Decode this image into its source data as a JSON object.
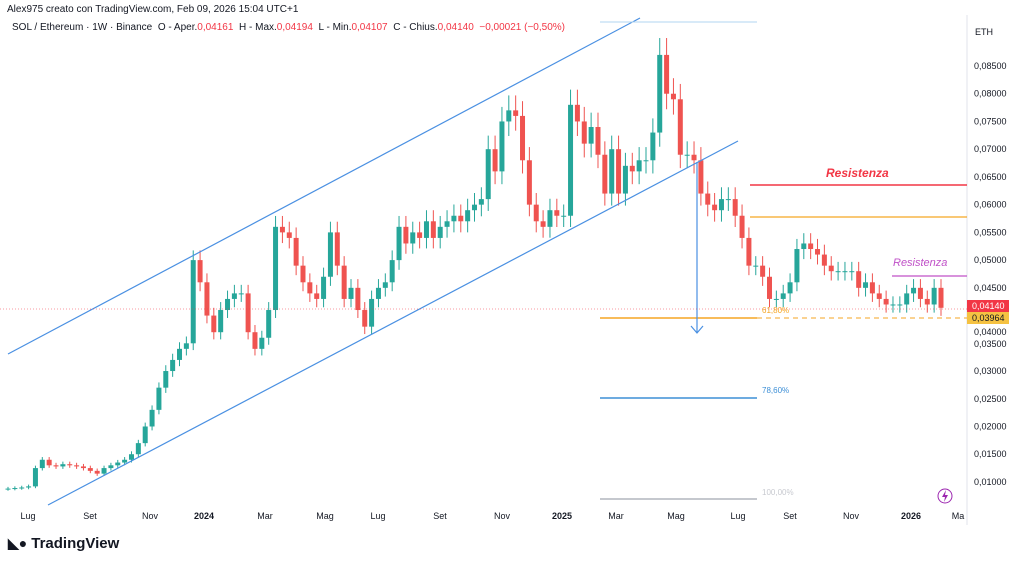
{
  "header": {
    "credit": "Alex975 creato con TradingView.com, Feb 09, 2026 15:04 UTC+1"
  },
  "symbol": {
    "name": "SOL / Ethereum · 1W · Binance",
    "o_label": "O - Aper.",
    "o": "0,04161",
    "h_label": "H - Max.",
    "h": "0,04194",
    "l_label": "L - Min.",
    "l": "0,04107",
    "c_label": "C - Chius.",
    "c": "0,04140",
    "change": "−0,00021 (−0,50%)"
  },
  "logo": "TradingView",
  "colors": {
    "up": "#26a69a",
    "down": "#ef5350",
    "channel": "#4a90e2",
    "fib618": "#f5a623",
    "fib786": "#3d8fd6",
    "fib100": "#b2b5be",
    "resistance": "#f23645",
    "resistance2": "#c050c8"
  },
  "chart_data": {
    "type": "candlestick",
    "currency": "ETH",
    "ylim": [
      0.005,
      0.09
    ],
    "yticks": [
      "0,08500",
      "0,08000",
      "0,07500",
      "0,07000",
      "0,06500",
      "0,06000",
      "0,05500",
      "0,05000",
      "0,04500",
      "0,04000",
      "0,03500",
      "0,03000",
      "0,02500",
      "0,02000",
      "0,01500",
      "0,01000"
    ],
    "xticks": [
      "Lug",
      "Set",
      "Nov",
      "2024",
      "Mar",
      "Mag",
      "Lug",
      "Set",
      "Nov",
      "2025",
      "Mar",
      "Mag",
      "Lug",
      "Set",
      "Nov",
      "2026",
      "Ma"
    ],
    "close": [
      0.0088,
      0.0089,
      0.009,
      0.0092,
      0.0125,
      0.014,
      0.013,
      0.0128,
      0.0132,
      0.013,
      0.0128,
      0.0125,
      0.012,
      0.0115,
      0.0125,
      0.013,
      0.0135,
      0.014,
      0.015,
      0.017,
      0.02,
      0.023,
      0.027,
      0.03,
      0.032,
      0.034,
      0.035,
      0.05,
      0.046,
      0.04,
      0.037,
      0.041,
      0.043,
      0.044,
      0.044,
      0.037,
      0.034,
      0.036,
      0.041,
      0.056,
      0.055,
      0.054,
      0.049,
      0.046,
      0.044,
      0.043,
      0.047,
      0.055,
      0.049,
      0.043,
      0.045,
      0.041,
      0.038,
      0.043,
      0.045,
      0.046,
      0.05,
      0.056,
      0.053,
      0.055,
      0.054,
      0.057,
      0.054,
      0.056,
      0.057,
      0.058,
      0.057,
      0.059,
      0.06,
      0.061,
      0.07,
      0.066,
      0.075,
      0.077,
      0.076,
      0.068,
      0.06,
      0.057,
      0.056,
      0.059,
      0.058,
      0.058,
      0.078,
      0.075,
      0.071,
      0.074,
      0.069,
      0.062,
      0.07,
      0.062,
      0.067,
      0.066,
      0.068,
      0.068,
      0.073,
      0.087,
      0.08,
      0.079,
      0.069,
      0.069,
      0.068,
      0.062,
      0.06,
      0.059,
      0.061,
      0.061,
      0.058,
      0.054,
      0.049,
      0.049,
      0.047,
      0.043,
      0.043,
      0.044,
      0.046,
      0.052,
      0.053,
      0.052,
      0.051,
      0.049,
      0.048,
      0.048,
      0.048,
      0.048,
      0.045,
      0.046,
      0.044,
      0.043,
      0.042,
      0.042,
      0.042,
      0.044,
      0.045,
      0.043,
      0.042,
      0.045,
      0.0414
    ],
    "last_price": "0,04140",
    "support_price": "0,03964",
    "annotations": {
      "resistance_1": "Resistenza",
      "resistance_2": "Resistenza",
      "fib_618": "61,80%",
      "fib_786": "78,60%",
      "fib_100": "100,00%"
    }
  }
}
